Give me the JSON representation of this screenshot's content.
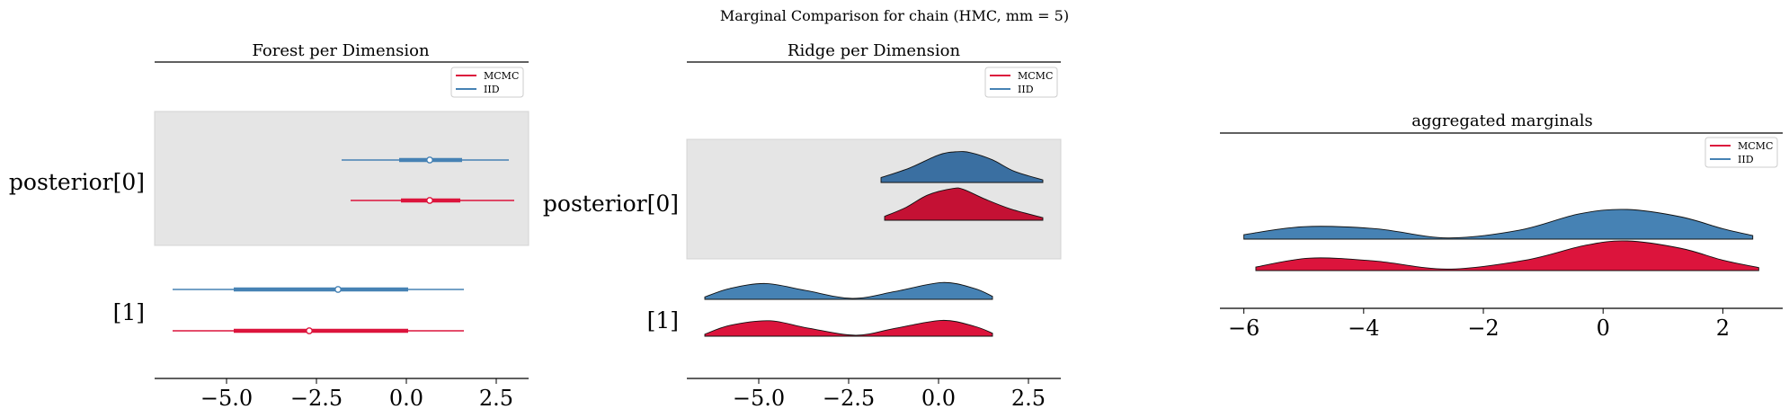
{
  "suptitle": "Marginal Comparison for chain (HMC, mm = 5)",
  "legend": {
    "mcmc": "MCMC",
    "iid": "IID"
  },
  "colors": {
    "mcmc": "#dc143c",
    "mcmc_dark": "#c41134",
    "iid": "#4682b4",
    "iid_dark": "#3a6fa1",
    "band": "#e5e5e5"
  },
  "chart_data": [
    {
      "type": "forest",
      "title": "Forest per Dimension",
      "xlim": [
        -7,
        3.4
      ],
      "xticks": [
        "−5.0",
        "−2.5",
        "0.0",
        "2.5"
      ],
      "xtick_values": [
        -5,
        -2.5,
        0,
        2.5
      ],
      "rows": [
        {
          "label": "posterior[0]",
          "highlight": true,
          "series": [
            {
              "name": "IID",
              "min": -1.8,
              "q1": -0.2,
              "median": 0.65,
              "q3": 1.55,
              "max": 2.85
            },
            {
              "name": "MCMC",
              "min": -1.55,
              "q1": -0.15,
              "median": 0.65,
              "q3": 1.5,
              "max": 3.0
            }
          ]
        },
        {
          "label": "[1]",
          "highlight": false,
          "series": [
            {
              "name": "IID",
              "min": -6.5,
              "q1": -4.8,
              "median": -1.9,
              "q3": 0.05,
              "max": 1.6
            },
            {
              "name": "MCMC",
              "min": -6.5,
              "q1": -4.8,
              "median": -2.7,
              "q3": 0.05,
              "max": 1.6
            }
          ]
        }
      ]
    },
    {
      "type": "ridge",
      "title": "Ridge per Dimension",
      "xlim": [
        -7,
        3.4
      ],
      "xticks": [
        "−5.0",
        "−2.5",
        "0.0",
        "2.5"
      ],
      "xtick_values": [
        -5,
        -2.5,
        0,
        2.5
      ],
      "rows": [
        {
          "label": "posterior[0]",
          "highlight": true,
          "series": [
            {
              "name": "IID",
              "x": [
                -1.6,
                -0.8,
                0,
                0.5,
                0.9,
                1.5,
                2.1,
                2.9
              ],
              "density": [
                0.15,
                0.45,
                0.85,
                0.95,
                0.92,
                0.7,
                0.35,
                0.08
              ]
            },
            {
              "name": "MCMC",
              "x": [
                -1.5,
                -0.9,
                -0.3,
                0.4,
                0.7,
                1.3,
                2.0,
                2.9
              ],
              "density": [
                0.12,
                0.4,
                0.78,
                0.98,
                0.95,
                0.65,
                0.35,
                0.08
              ]
            }
          ]
        },
        {
          "label": "[1]",
          "highlight": false,
          "series": [
            {
              "name": "IID",
              "x": [
                -6.5,
                -5.8,
                -4.8,
                -3.7,
                -2.4,
                -1.2,
                0.1,
                1.0,
                1.5
              ],
              "density": [
                0.12,
                0.55,
                0.8,
                0.45,
                0.05,
                0.4,
                0.85,
                0.55,
                0.15
              ]
            },
            {
              "name": "MCMC",
              "x": [
                -6.5,
                -5.8,
                -4.7,
                -3.6,
                -2.3,
                -1.2,
                0.1,
                1.0,
                1.5
              ],
              "density": [
                0.1,
                0.55,
                0.78,
                0.4,
                0.05,
                0.4,
                0.8,
                0.5,
                0.15
              ]
            }
          ]
        }
      ]
    },
    {
      "type": "ridge",
      "title": "aggregated marginals",
      "xlim": [
        -6.4,
        3.0
      ],
      "xticks": [
        "−6",
        "−4",
        "−2",
        "0",
        "2"
      ],
      "xtick_values": [
        -6,
        -4,
        -2,
        0,
        2
      ],
      "rows": [
        {
          "label": "",
          "highlight": false,
          "series": [
            {
              "name": "IID",
              "x": [
                -6.0,
                -5.0,
                -3.8,
                -2.6,
                -1.4,
                -0.4,
                0.4,
                1.3,
                2.0,
                2.5
              ],
              "density": [
                0.15,
                0.42,
                0.35,
                0.04,
                0.3,
                0.85,
                1.0,
                0.75,
                0.35,
                0.12
              ]
            },
            {
              "name": "MCMC",
              "x": [
                -5.8,
                -4.9,
                -3.8,
                -2.6,
                -1.3,
                -0.3,
                0.4,
                1.3,
                2.0,
                2.6
              ],
              "density": [
                0.12,
                0.42,
                0.32,
                0.05,
                0.35,
                0.85,
                1.0,
                0.75,
                0.35,
                0.1
              ]
            }
          ]
        }
      ]
    }
  ]
}
